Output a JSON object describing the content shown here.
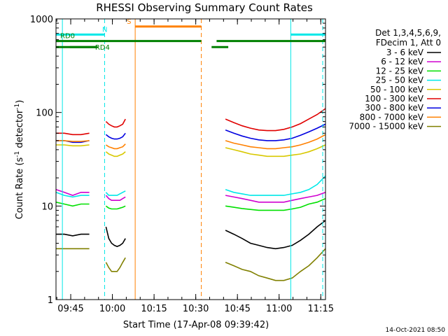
{
  "chart_data": {
    "type": "line",
    "title": "RHESSI Observing Summary Count Rates",
    "xlabel": "Start Time (17-Apr-08 09:39:42)",
    "ylabel": "Count Rate (s⁻¹ detector⁻¹)",
    "ylabel_main": "Count Rate (s",
    "ylabel_sup1": "-1",
    "ylabel_mid": " detector",
    "ylabel_sup2": "-1",
    "ylabel_end": ")",
    "y_scale": "log",
    "ylim": [
      1,
      1000
    ],
    "y_ticks": [
      {
        "value": 1,
        "label": "1"
      },
      {
        "value": 10,
        "label": "10"
      },
      {
        "value": 100,
        "label": "100"
      },
      {
        "value": 1000,
        "label": "1000"
      }
    ],
    "xlim_minutes": [
      0,
      97
    ],
    "x_ticks": [
      {
        "value": 5.3,
        "label": "09:45"
      },
      {
        "value": 20.3,
        "label": "10:00"
      },
      {
        "value": 35.3,
        "label": "10:15"
      },
      {
        "value": 50.3,
        "label": "10:30"
      },
      {
        "value": 65.3,
        "label": "10:45"
      },
      {
        "value": 80.3,
        "label": "11:00"
      },
      {
        "value": 95.3,
        "label": "11:15"
      }
    ],
    "legend": {
      "placement": "right",
      "header": [
        "Det 1,3,4,5,6,9,",
        "FDecim 1, Att 0"
      ],
      "entries": [
        {
          "label": "3 - 6 keV",
          "color": "#000000"
        },
        {
          "label": "6 - 12 keV",
          "color": "#d000d0"
        },
        {
          "label": "12 - 25 keV",
          "color": "#00e000"
        },
        {
          "label": "25 - 50 keV",
          "color": "#00e8e8"
        },
        {
          "label": "50 - 100 keV",
          "color": "#d8c800"
        },
        {
          "label": "100 - 300 keV",
          "color": "#e00000"
        },
        {
          "label": "300 - 800 keV",
          "color": "#0000e0"
        },
        {
          "label": "800 - 7000 keV",
          "color": "#ff8000"
        },
        {
          "label": "7000 - 15000 keV",
          "color": "#808000"
        }
      ]
    },
    "series": [
      {
        "name": "3 - 6 keV",
        "segments": [
          {
            "x": [
              0,
              3,
              6,
              9,
              12
            ],
            "y": [
              5,
              5,
              4.8,
              5,
              5
            ]
          },
          {
            "x": [
              18,
              19,
              20,
              21,
              22,
              23,
              24,
              25
            ],
            "y": [
              6,
              4.5,
              4,
              3.8,
              3.7,
              3.8,
              4,
              4.5
            ]
          },
          {
            "x": [
              61,
              64,
              67,
              70,
              73,
              76,
              79,
              82,
              85,
              88,
              91,
              94,
              97
            ],
            "y": [
              5.5,
              5,
              4.5,
              4,
              3.8,
              3.6,
              3.5,
              3.6,
              3.8,
              4.3,
              5,
              6,
              7
            ]
          }
        ]
      },
      {
        "name": "6 - 12 keV",
        "segments": [
          {
            "x": [
              0,
              3,
              6,
              9,
              12
            ],
            "y": [
              15,
              14,
              13,
              14,
              14
            ]
          },
          {
            "x": [
              18,
              19,
              20,
              21,
              22,
              23,
              24,
              25
            ],
            "y": [
              13,
              12,
              11.5,
              11.5,
              11.5,
              11.5,
              12,
              12.5
            ]
          },
          {
            "x": [
              61,
              64,
              67,
              70,
              73,
              76,
              79,
              82,
              85,
              88,
              91,
              94,
              97
            ],
            "y": [
              13,
              12.5,
              12,
              11.5,
              11,
              11,
              11,
              11,
              11.5,
              12,
              12.5,
              13,
              14
            ]
          }
        ]
      },
      {
        "name": "12 - 25 keV",
        "segments": [
          {
            "x": [
              0,
              3,
              6,
              9,
              12
            ],
            "y": [
              11,
              10.5,
              10,
              10.5,
              10.5
            ]
          },
          {
            "x": [
              18,
              19,
              20,
              21,
              22,
              23,
              24,
              25
            ],
            "y": [
              10,
              9.5,
              9.3,
              9.3,
              9.3,
              9.5,
              9.7,
              10
            ]
          },
          {
            "x": [
              61,
              64,
              67,
              70,
              73,
              76,
              79,
              82,
              85,
              88,
              91,
              94,
              97
            ],
            "y": [
              10,
              9.7,
              9.4,
              9.2,
              9,
              9,
              9,
              9,
              9.3,
              9.7,
              10.5,
              11,
              12
            ]
          }
        ]
      },
      {
        "name": "25 - 50 keV",
        "segments": [
          {
            "x": [
              0,
              3,
              6,
              9,
              12
            ],
            "y": [
              14,
              13,
              12.5,
              13,
              13
            ]
          },
          {
            "x": [
              18,
              19,
              20,
              21,
              22,
              23,
              24,
              25
            ],
            "y": [
              14,
              13,
              13,
              13,
              13,
              13.5,
              14,
              14.5
            ]
          },
          {
            "x": [
              61,
              64,
              67,
              70,
              73,
              76,
              79,
              82,
              85,
              88,
              91,
              94,
              97
            ],
            "y": [
              15,
              14,
              13.5,
              13,
              13,
              13,
              13,
              13,
              13.5,
              14,
              15,
              17,
              21
            ]
          }
        ]
      },
      {
        "name": "50 - 100 keV",
        "segments": [
          {
            "x": [
              0,
              3,
              6,
              9,
              12
            ],
            "y": [
              45,
              45,
              44,
              44,
              45
            ]
          },
          {
            "x": [
              18,
              19,
              20,
              21,
              22,
              23,
              24,
              25
            ],
            "y": [
              38,
              36,
              35,
              34,
              34,
              35,
              36,
              38
            ]
          },
          {
            "x": [
              61,
              64,
              67,
              70,
              73,
              76,
              79,
              82,
              85,
              88,
              91,
              94,
              97
            ],
            "y": [
              42,
              40,
              38,
              36,
              35,
              34,
              34,
              34,
              35,
              36,
              38,
              41,
              45
            ]
          }
        ]
      },
      {
        "name": "100 - 300 keV",
        "segments": [
          {
            "x": [
              0,
              3,
              6,
              9,
              12
            ],
            "y": [
              60,
              60,
              58,
              58,
              60
            ]
          },
          {
            "x": [
              18,
              19,
              20,
              21,
              22,
              23,
              24,
              25
            ],
            "y": [
              80,
              75,
              72,
              70,
              70,
              72,
              75,
              85
            ]
          },
          {
            "x": [
              61,
              64,
              67,
              70,
              73,
              76,
              79,
              82,
              85,
              88,
              91,
              94,
              97
            ],
            "y": [
              85,
              78,
              72,
              68,
              65,
              64,
              64,
              66,
              70,
              76,
              85,
              95,
              110
            ]
          }
        ]
      },
      {
        "name": "300 - 800 keV",
        "segments": [
          {
            "x": [
              0,
              3,
              6,
              9,
              12
            ],
            "y": [
              50,
              50,
              48,
              48,
              50
            ]
          },
          {
            "x": [
              18,
              19,
              20,
              21,
              22,
              23,
              24,
              25
            ],
            "y": [
              58,
              55,
              53,
              52,
              52,
              53,
              55,
              60
            ]
          },
          {
            "x": [
              61,
              64,
              67,
              70,
              73,
              76,
              79,
              82,
              85,
              88,
              91,
              94,
              97
            ],
            "y": [
              65,
              60,
              56,
              53,
              51,
              50,
              50,
              51,
              53,
              57,
              62,
              68,
              75
            ]
          }
        ]
      },
      {
        "name": "800 - 7000 keV",
        "segments": [
          {
            "x": [
              0,
              3,
              6,
              9,
              12
            ],
            "y": [
              50,
              50,
              49,
              49,
              50
            ]
          },
          {
            "x": [
              18,
              19,
              20,
              21,
              22,
              23,
              24,
              25
            ],
            "y": [
              45,
              43,
              42,
              41,
              41,
              42,
              43,
              46
            ]
          },
          {
            "x": [
              61,
              64,
              67,
              70,
              73,
              76,
              79,
              82,
              85,
              88,
              91,
              94,
              97
            ],
            "y": [
              50,
              47,
              45,
              43,
              42,
              41,
              41,
              42,
              43,
              45,
              48,
              52,
              58
            ]
          }
        ]
      },
      {
        "name": "7000 - 15000 keV",
        "segments": [
          {
            "x": [
              0,
              3,
              6,
              9,
              12
            ],
            "y": [
              3.5,
              3.5,
              3.5,
              3.5,
              3.5
            ]
          },
          {
            "x": [
              18,
              19,
              20,
              21,
              22,
              23,
              24,
              25
            ],
            "y": [
              2.5,
              2.2,
              2,
              2,
              2,
              2.2,
              2.5,
              2.8
            ]
          },
          {
            "x": [
              61,
              64,
              67,
              70,
              73,
              76,
              79,
              82,
              85,
              88,
              91,
              94,
              97
            ],
            "y": [
              2.5,
              2.3,
              2.1,
              2,
              1.8,
              1.7,
              1.6,
              1.6,
              1.7,
              2,
              2.3,
              2.8,
              3.5
            ]
          }
        ]
      }
    ],
    "flag_bars": [
      {
        "label": "N",
        "color": "#00e8e8",
        "segments": [
          [
            0,
            17.5
          ],
          [
            84.5,
            97
          ]
        ],
        "level": 680
      },
      {
        "label": "S",
        "color": "#ff8000",
        "segments": [
          [
            28.5,
            52.3
          ]
        ],
        "level": 830
      },
      {
        "label": "",
        "color": "#008000",
        "segments": [
          [
            0,
            52.3
          ],
          [
            57.8,
            97
          ]
        ],
        "level": 580
      },
      {
        "label": "RD0",
        "color": "#008000",
        "segments": [
          [
            0,
            1
          ]
        ],
        "level": 580
      },
      {
        "label": "RD4",
        "color": "#008000",
        "segments": [
          [
            5,
            15
          ]
        ],
        "level": 500
      },
      {
        "label": "",
        "color": "#008000",
        "segments": [
          [
            0,
            15
          ],
          [
            56,
            62
          ]
        ],
        "level": 500
      }
    ],
    "vlines": [
      {
        "x": 17.5,
        "color": "#00e8e8",
        "style": "dashed"
      },
      {
        "x": 84.5,
        "color": "#00e8e8",
        "style": "solid"
      },
      {
        "x": 96,
        "color": "#00e8e8",
        "style": "dashed"
      },
      {
        "x": 2.3,
        "color": "#00e8e8",
        "style": "solid"
      },
      {
        "x": 28.5,
        "color": "#ff8000",
        "style": "solid"
      },
      {
        "x": 52.3,
        "color": "#ff8000",
        "style": "dashed"
      }
    ],
    "timestamp": "14-Oct-2021 08:50"
  }
}
